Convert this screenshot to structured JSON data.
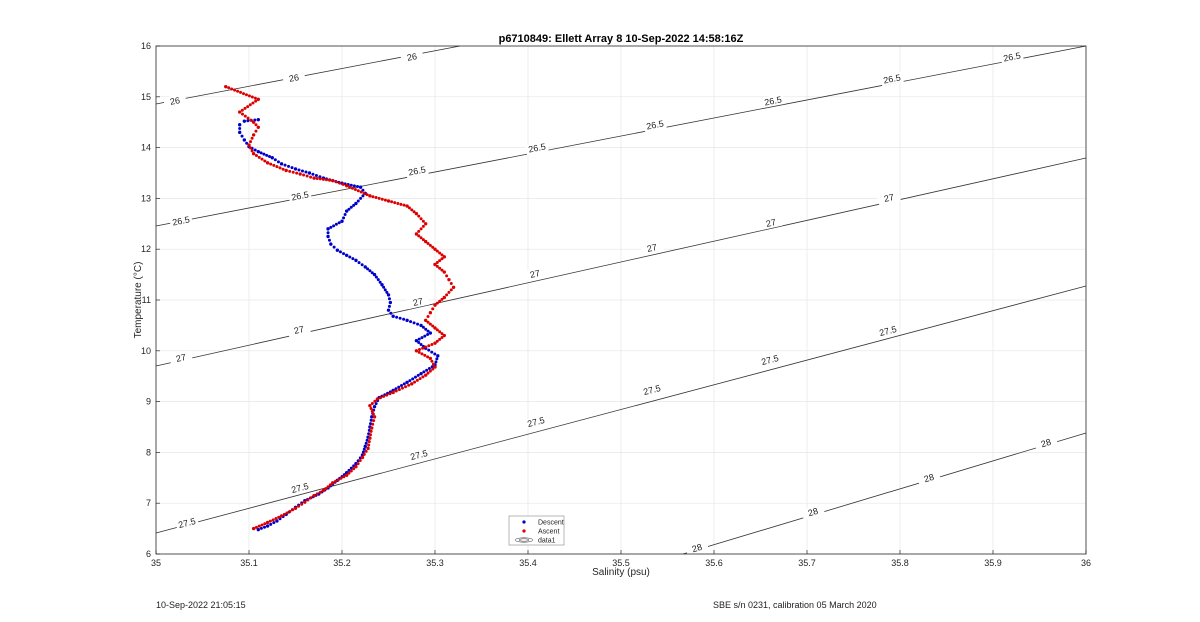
{
  "footer": {
    "timestamp": "10-Sep-2022 21:05:15",
    "calibration": "SBE s/n 0231, calibration 05 March 2020"
  },
  "chart_data": {
    "type": "scatter",
    "title": "p6710849: Ellett Array 8 10-Sep-2022 14:58:16Z",
    "xlabel": "Salinity (psu)",
    "ylabel": "Temperature (°C)",
    "xlim": [
      35,
      36
    ],
    "ylim": [
      6,
      16
    ],
    "xticks": [
      "35",
      "35.1",
      "35.2",
      "35.3",
      "35.4",
      "35.5",
      "35.6",
      "35.7",
      "35.8",
      "35.9",
      "36"
    ],
    "yticks": [
      "6",
      "7",
      "8",
      "9",
      "10",
      "11",
      "12",
      "13",
      "14",
      "15",
      "16"
    ],
    "grid": true,
    "legend": {
      "placement": "bottom-center",
      "entries": [
        "Descent",
        "Ascent",
        "data1"
      ]
    },
    "colors": {
      "descent": "#0000cc",
      "ascent": "#dd0000",
      "contour": "#333333",
      "grid": "#e6e6e6"
    },
    "series": [
      {
        "name": "Descent",
        "points": [
          [
            35.11,
            6.48
          ],
          [
            35.12,
            6.55
          ],
          [
            35.13,
            6.65
          ],
          [
            35.14,
            6.78
          ],
          [
            35.15,
            6.92
          ],
          [
            35.16,
            7.05
          ],
          [
            35.175,
            7.18
          ],
          [
            35.185,
            7.3
          ],
          [
            35.195,
            7.45
          ],
          [
            35.205,
            7.6
          ],
          [
            35.215,
            7.78
          ],
          [
            35.222,
            7.95
          ],
          [
            35.225,
            8.12
          ],
          [
            35.228,
            8.3
          ],
          [
            35.23,
            8.5
          ],
          [
            35.232,
            8.7
          ],
          [
            35.235,
            8.9
          ],
          [
            35.24,
            9.08
          ],
          [
            35.255,
            9.22
          ],
          [
            35.27,
            9.38
          ],
          [
            35.285,
            9.55
          ],
          [
            35.3,
            9.72
          ],
          [
            35.303,
            9.9
          ],
          [
            35.29,
            10.05
          ],
          [
            35.28,
            10.2
          ],
          [
            35.295,
            10.35
          ],
          [
            35.285,
            10.5
          ],
          [
            35.27,
            10.6
          ],
          [
            35.255,
            10.68
          ],
          [
            35.25,
            10.8
          ],
          [
            35.252,
            10.95
          ],
          [
            35.25,
            11.1
          ],
          [
            35.243,
            11.3
          ],
          [
            35.235,
            11.5
          ],
          [
            35.225,
            11.65
          ],
          [
            35.215,
            11.78
          ],
          [
            35.205,
            11.88
          ],
          [
            35.195,
            11.98
          ],
          [
            35.188,
            12.1
          ],
          [
            35.185,
            12.25
          ],
          [
            35.185,
            12.4
          ],
          [
            35.2,
            12.55
          ],
          [
            35.205,
            12.75
          ],
          [
            35.215,
            12.9
          ],
          [
            35.225,
            13.1
          ],
          [
            35.22,
            13.22
          ],
          [
            35.2,
            13.3
          ],
          [
            35.18,
            13.4
          ],
          [
            35.165,
            13.5
          ],
          [
            35.15,
            13.58
          ],
          [
            35.135,
            13.68
          ],
          [
            35.125,
            13.8
          ],
          [
            35.11,
            13.92
          ],
          [
            35.1,
            14.02
          ],
          [
            35.095,
            14.15
          ],
          [
            35.09,
            14.3
          ],
          [
            35.09,
            14.45
          ],
          [
            35.095,
            14.52
          ],
          [
            35.11,
            14.55
          ]
        ]
      },
      {
        "name": "Ascent",
        "points": [
          [
            35.105,
            6.5
          ],
          [
            35.12,
            6.62
          ],
          [
            35.135,
            6.75
          ],
          [
            35.15,
            6.9
          ],
          [
            35.16,
            7.02
          ],
          [
            35.17,
            7.15
          ],
          [
            35.18,
            7.25
          ],
          [
            35.19,
            7.4
          ],
          [
            35.205,
            7.55
          ],
          [
            35.215,
            7.72
          ],
          [
            35.222,
            7.9
          ],
          [
            35.228,
            8.08
          ],
          [
            35.23,
            8.28
          ],
          [
            35.232,
            8.48
          ],
          [
            35.235,
            8.7
          ],
          [
            35.23,
            8.92
          ],
          [
            35.238,
            9.05
          ],
          [
            35.255,
            9.18
          ],
          [
            35.275,
            9.35
          ],
          [
            35.29,
            9.52
          ],
          [
            35.3,
            9.68
          ],
          [
            35.295,
            9.85
          ],
          [
            35.28,
            10.0
          ],
          [
            35.3,
            10.15
          ],
          [
            35.31,
            10.3
          ],
          [
            35.3,
            10.45
          ],
          [
            35.29,
            10.6
          ],
          [
            35.295,
            10.75
          ],
          [
            35.3,
            10.9
          ],
          [
            35.31,
            11.05
          ],
          [
            35.32,
            11.25
          ],
          [
            35.315,
            11.4
          ],
          [
            35.31,
            11.55
          ],
          [
            35.3,
            11.7
          ],
          [
            35.31,
            11.85
          ],
          [
            35.3,
            12.0
          ],
          [
            35.29,
            12.15
          ],
          [
            35.28,
            12.3
          ],
          [
            35.29,
            12.5
          ],
          [
            35.28,
            12.7
          ],
          [
            35.27,
            12.85
          ],
          [
            35.25,
            12.95
          ],
          [
            35.23,
            13.05
          ],
          [
            35.205,
            13.25
          ],
          [
            35.19,
            13.35
          ],
          [
            35.17,
            13.4
          ],
          [
            35.155,
            13.48
          ],
          [
            35.14,
            13.55
          ],
          [
            35.12,
            13.7
          ],
          [
            35.105,
            13.88
          ],
          [
            35.1,
            14.05
          ],
          [
            35.105,
            14.25
          ],
          [
            35.11,
            14.4
          ],
          [
            35.105,
            14.5
          ],
          [
            35.09,
            14.7
          ],
          [
            35.11,
            14.95
          ],
          [
            35.075,
            15.2
          ]
        ]
      }
    ],
    "contours": [
      {
        "level": "26",
        "labels": 3
      },
      {
        "level": "26.5",
        "labels": 8
      },
      {
        "level": "27",
        "labels": 7
      },
      {
        "level": "27.5",
        "labels": 7
      },
      {
        "level": "28",
        "labels": 4
      }
    ]
  }
}
